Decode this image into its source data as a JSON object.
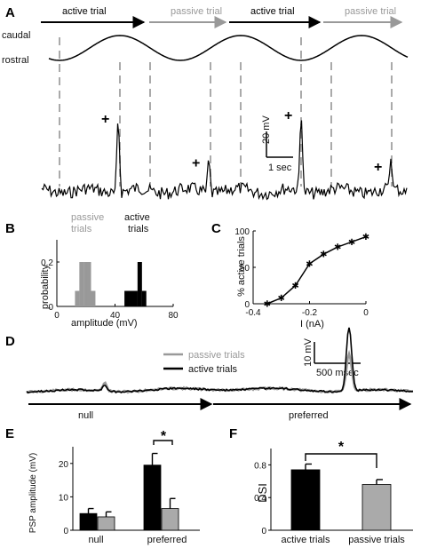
{
  "chart_data": [
    {
      "panel": "A",
      "type": "line",
      "trial_labels": [
        "active trial",
        "passive trial",
        "active trial",
        "passive trial"
      ],
      "trial_colors": [
        "#000000",
        "#999999",
        "#000000",
        "#999999"
      ],
      "position_labels": [
        "caudal",
        "rostral"
      ],
      "scale_bar": {
        "y": "20 mV",
        "x": "1 sec"
      },
      "spike_marker": "+",
      "spike_amplitudes_mV": [
        62,
        28,
        65,
        25
      ],
      "spike_times_s": [
        1.65,
        3.75,
        5.85,
        8.05
      ]
    },
    {
      "panel": "B",
      "type": "bar",
      "xlabel": "amplitude (mV)",
      "ylabel": "probability",
      "xlim": [
        0,
        80
      ],
      "ylim": [
        0,
        0.3
      ],
      "xticks": [
        0,
        40,
        80
      ],
      "yticks": [
        0,
        0.2
      ],
      "series": [
        {
          "name": "passive trials",
          "color": "#999999",
          "x": [
            14,
            17,
            20,
            22,
            25
          ],
          "values": [
            0.07,
            0.2,
            0.2,
            0.2,
            0.07
          ]
        },
        {
          "name": "active trials",
          "color": "#000000",
          "x": [
            48,
            51,
            54,
            57,
            60
          ],
          "values": [
            0.07,
            0.07,
            0.07,
            0.2,
            0.07
          ]
        }
      ]
    },
    {
      "panel": "C",
      "type": "line",
      "xlabel": "I (nA)",
      "ylabel": "% active trials",
      "xlim": [
        -0.4,
        0
      ],
      "ylim": [
        0,
        100
      ],
      "xticks": [
        -0.4,
        -0.2,
        0
      ],
      "yticks": [
        0,
        50,
        100
      ],
      "x": [
        -0.35,
        -0.3,
        -0.25,
        -0.2,
        -0.15,
        -0.1,
        -0.05,
        0
      ],
      "values": [
        0,
        8,
        25,
        55,
        68,
        78,
        85,
        92
      ]
    },
    {
      "panel": "D",
      "type": "line",
      "legend": [
        "passive trials",
        "active trials"
      ],
      "legend_colors": [
        "#999999",
        "#000000"
      ],
      "scale_bar": {
        "y": "10 mV",
        "x": "500 msec"
      },
      "direction_labels": [
        "null",
        "preferred"
      ]
    },
    {
      "panel": "E",
      "type": "bar",
      "ylabel": "PSP amplitude (mV)",
      "categories": [
        "null",
        "preferred"
      ],
      "ylim": [
        0,
        25
      ],
      "yticks": [
        0,
        10,
        20
      ],
      "series": [
        {
          "color": "#000000",
          "values": [
            5,
            19.5
          ],
          "errors": [
            1.5,
            3.5
          ]
        },
        {
          "color": "#aaaaaa",
          "values": [
            4,
            6.5
          ],
          "errors": [
            1.5,
            3
          ]
        }
      ],
      "significance": "*"
    },
    {
      "panel": "F",
      "type": "bar",
      "ylabel": "DSI",
      "categories": [
        "active trials",
        "passive trials"
      ],
      "colors": [
        "#000000",
        "#aaaaaa"
      ],
      "ylim": [
        0,
        1
      ],
      "yticks": [
        0,
        0.4,
        0.8
      ],
      "values": [
        0.74,
        0.56
      ],
      "errors": [
        0.07,
        0.06
      ],
      "significance": "*"
    }
  ],
  "panels": {
    "a": "A",
    "b": "B",
    "c": "C",
    "d": "D",
    "e": "E",
    "f": "F"
  }
}
